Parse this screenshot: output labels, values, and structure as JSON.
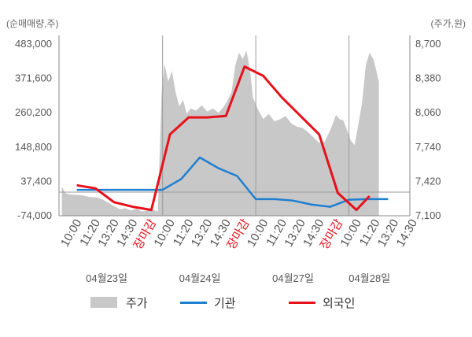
{
  "chart_data": {
    "type": "line",
    "left_unit": "(순매매량,주)",
    "right_unit": "(주가,원)",
    "left_axis": {
      "ticks": [
        "483,000",
        "371,600",
        "260,200",
        "148,800",
        "37,400",
        "-74,000"
      ],
      "range": [
        -74000,
        483000
      ]
    },
    "right_axis": {
      "ticks": [
        "8,700",
        "8,380",
        "8,060",
        "7,740",
        "7,420",
        "7,100"
      ],
      "range": [
        7100,
        8700
      ]
    },
    "x_tick_labels": [
      {
        "text": "10:00",
        "slot": 0,
        "marker": false
      },
      {
        "text": "11:20",
        "slot": 1,
        "marker": false
      },
      {
        "text": "13:20",
        "slot": 2,
        "marker": false
      },
      {
        "text": "14:30",
        "slot": 3,
        "marker": false
      },
      {
        "text": "장마감",
        "slot": 4,
        "marker": true
      },
      {
        "text": "10:00",
        "slot": 5,
        "marker": false
      },
      {
        "text": "11:20",
        "slot": 6,
        "marker": false
      },
      {
        "text": "13:20",
        "slot": 7,
        "marker": false
      },
      {
        "text": "14:30",
        "slot": 8,
        "marker": false
      },
      {
        "text": "장마감",
        "slot": 9,
        "marker": true
      },
      {
        "text": "10:00",
        "slot": 10,
        "marker": false
      },
      {
        "text": "11:20",
        "slot": 11,
        "marker": false
      },
      {
        "text": "13:20",
        "slot": 12,
        "marker": false
      },
      {
        "text": "14:30",
        "slot": 13,
        "marker": false
      },
      {
        "text": "장마감",
        "slot": 14,
        "marker": true
      },
      {
        "text": "10:00",
        "slot": 15,
        "marker": false
      },
      {
        "text": "11:20",
        "slot": 16,
        "marker": false
      },
      {
        "text": "13:20",
        "slot": 17,
        "marker": false
      },
      {
        "text": "14:30",
        "slot": 18,
        "marker": false
      }
    ],
    "dates": [
      {
        "text": "04월23일",
        "slot": 1.5
      },
      {
        "text": "04월24일",
        "slot": 6.5
      },
      {
        "text": "04월27일",
        "slot": 11.5
      },
      {
        "text": "04월28일",
        "slot": 15.6
      }
    ],
    "day_separators": [
      4.5,
      9.5,
      14.5
    ],
    "price_series": {
      "name": "주가",
      "color": "#c8c8c8",
      "points": [
        [
          -0.9,
          7370
        ],
        [
          -0.7,
          7310
        ],
        [
          -0.5,
          7300
        ],
        [
          -0.2,
          7295
        ],
        [
          0.2,
          7290
        ],
        [
          0.6,
          7275
        ],
        [
          1.0,
          7270
        ],
        [
          1.3,
          7250
        ],
        [
          1.6,
          7220
        ],
        [
          1.9,
          7190
        ],
        [
          2.2,
          7160
        ],
        [
          2.5,
          7170
        ],
        [
          2.8,
          7150
        ],
        [
          3.1,
          7165
        ],
        [
          3.4,
          7140
        ],
        [
          3.7,
          7150
        ],
        [
          4.0,
          7155
        ],
        [
          4.25,
          7140
        ],
        [
          4.35,
          7700
        ],
        [
          4.45,
          8250
        ],
        [
          4.6,
          8520
        ],
        [
          4.8,
          8350
        ],
        [
          5.0,
          8450
        ],
        [
          5.2,
          8250
        ],
        [
          5.4,
          8120
        ],
        [
          5.6,
          8180
        ],
        [
          5.8,
          8050
        ],
        [
          6.0,
          8100
        ],
        [
          6.3,
          8080
        ],
        [
          6.6,
          8130
        ],
        [
          6.9,
          8070
        ],
        [
          7.2,
          8100
        ],
        [
          7.5,
          8060
        ],
        [
          7.8,
          8120
        ],
        [
          8.0,
          8180
        ],
        [
          8.2,
          8250
        ],
        [
          8.4,
          8500
        ],
        [
          8.6,
          8620
        ],
        [
          8.8,
          8560
        ],
        [
          9.0,
          8640
        ],
        [
          9.2,
          8450
        ],
        [
          9.35,
          8200
        ],
        [
          9.6,
          8100
        ],
        [
          9.9,
          8000
        ],
        [
          10.2,
          8050
        ],
        [
          10.5,
          7980
        ],
        [
          10.8,
          8000
        ],
        [
          11.1,
          8030
        ],
        [
          11.4,
          7960
        ],
        [
          11.7,
          7930
        ],
        [
          12.0,
          7920
        ],
        [
          12.3,
          7880
        ],
        [
          12.6,
          7830
        ],
        [
          12.9,
          7780
        ],
        [
          13.2,
          7790
        ],
        [
          13.5,
          7900
        ],
        [
          13.8,
          8040
        ],
        [
          14.0,
          8000
        ],
        [
          14.2,
          7990
        ],
        [
          14.6,
          7800
        ],
        [
          14.8,
          7760
        ],
        [
          15.0,
          7950
        ],
        [
          15.2,
          8150
        ],
        [
          15.4,
          8500
        ],
        [
          15.6,
          8620
        ],
        [
          15.8,
          8560
        ],
        [
          15.9,
          8500
        ],
        [
          16.1,
          8350
        ]
      ]
    },
    "institution_series": {
      "name": "기관",
      "color": "#1f7fd0",
      "points": [
        [
          -0.1,
          10000
        ],
        [
          0.5,
          10000
        ],
        [
          1.5,
          10000
        ],
        [
          2.5,
          10000
        ],
        [
          3.5,
          10000
        ],
        [
          4.5,
          10000
        ],
        [
          5.5,
          45000
        ],
        [
          6.5,
          115000
        ],
        [
          7.5,
          80000
        ],
        [
          8.5,
          55000
        ],
        [
          9.5,
          -20000
        ],
        [
          10.5,
          -20000
        ],
        [
          11.5,
          -25000
        ],
        [
          12.5,
          -38000
        ],
        [
          13.5,
          -45000
        ],
        [
          14.5,
          -22000
        ],
        [
          15.5,
          -20000
        ],
        [
          16.6,
          -20000
        ]
      ]
    },
    "foreign_series": {
      "name": "외국인",
      "color": "#e8101a",
      "points": [
        [
          -0.1,
          25000
        ],
        [
          0.9,
          15000
        ],
        [
          1.9,
          -30000
        ],
        [
          2.9,
          -45000
        ],
        [
          3.9,
          -55000
        ],
        [
          4.9,
          190000
        ],
        [
          5.9,
          245000
        ],
        [
          6.9,
          245000
        ],
        [
          7.9,
          250000
        ],
        [
          8.9,
          410000
        ],
        [
          9.9,
          380000
        ],
        [
          10.9,
          310000
        ],
        [
          11.9,
          250000
        ],
        [
          12.9,
          190000
        ],
        [
          13.9,
          0
        ],
        [
          14.9,
          -55000
        ],
        [
          15.6,
          -10000
        ]
      ]
    }
  },
  "legend": [
    {
      "label": "주가",
      "kind": "area",
      "color": "#c8c8c8"
    },
    {
      "label": "기관",
      "kind": "line",
      "color": "#1f7fd0"
    },
    {
      "label": "외국인",
      "kind": "line",
      "color": "#e8101a"
    }
  ]
}
